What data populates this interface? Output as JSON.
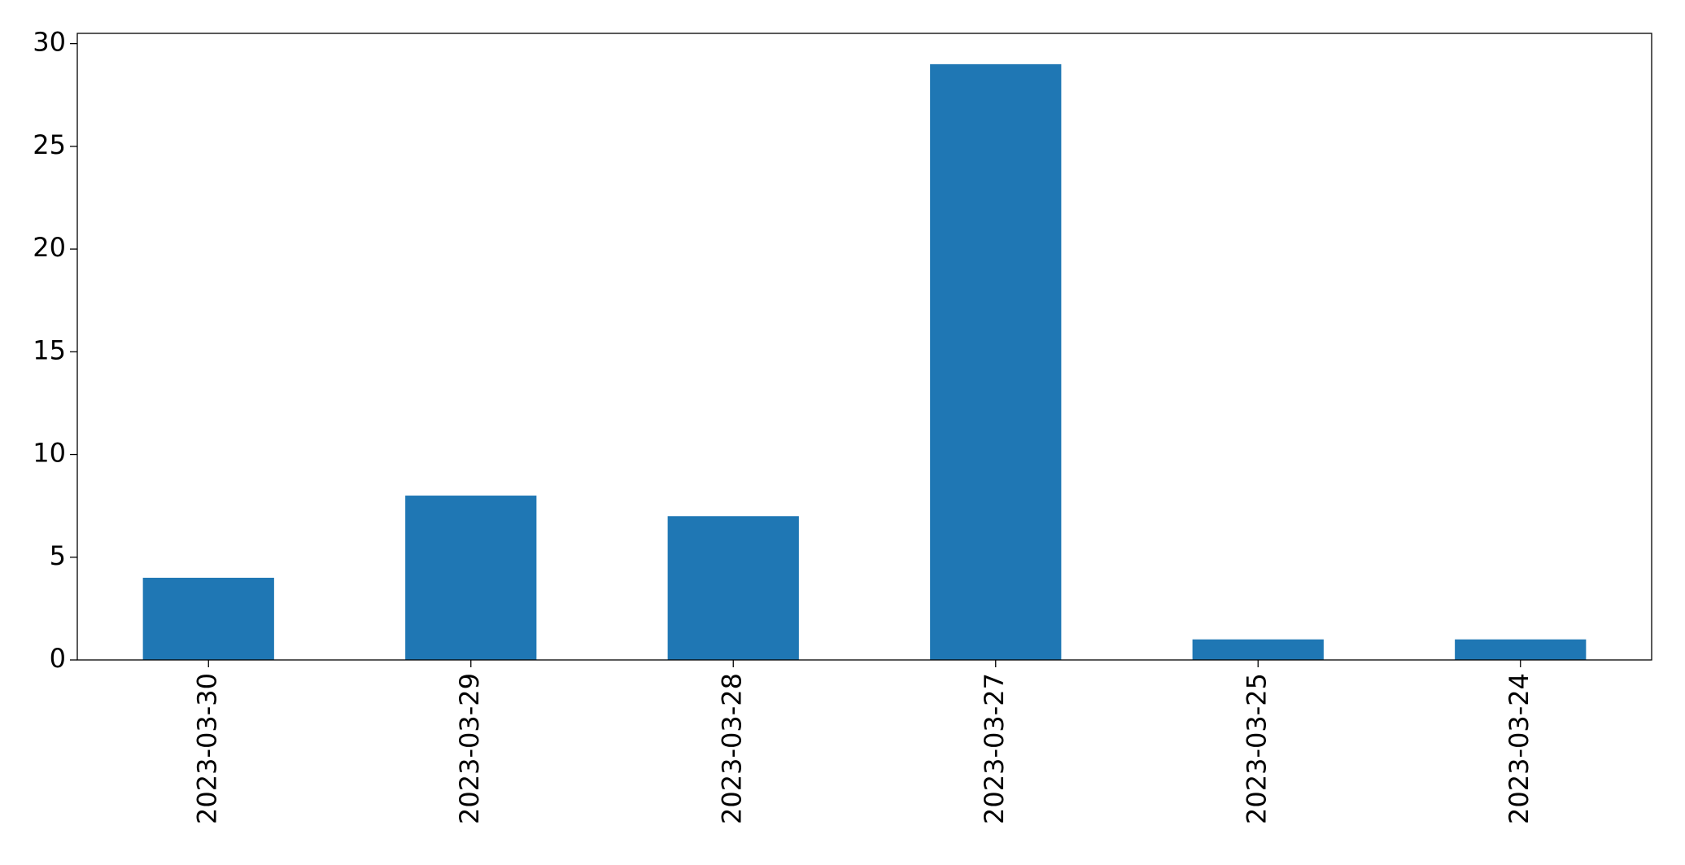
{
  "chart_data": {
    "type": "bar",
    "categories": [
      "2023-03-30",
      "2023-03-29",
      "2023-03-28",
      "2023-03-27",
      "2023-03-25",
      "2023-03-24"
    ],
    "values": [
      4,
      8,
      7,
      29,
      1,
      1
    ],
    "color": "#1f77b4",
    "ylim": [
      0,
      30.5
    ],
    "yticks": [
      0,
      5,
      10,
      15,
      20,
      25,
      30
    ],
    "grid": false
  }
}
